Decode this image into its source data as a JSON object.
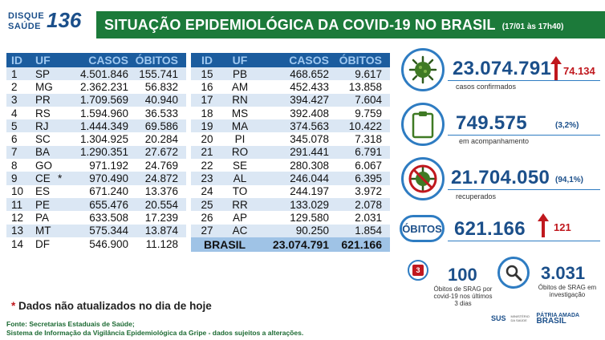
{
  "logo": {
    "line1": "DISQUE",
    "line2": "SAÚDE",
    "number": "136"
  },
  "header": {
    "title": "SITUAÇÃO EPIDEMIOLÓGICA DA COVID-19 NO BRASIL",
    "date": "(17/01 às 17h40)"
  },
  "table": {
    "headers": {
      "id": "ID",
      "uf": "UF",
      "casos": "CASOS",
      "obitos": "ÓBITOS"
    },
    "left": [
      {
        "id": "1",
        "uf": "SP",
        "casos": "4.501.846",
        "obitos": "155.741"
      },
      {
        "id": "2",
        "uf": "MG",
        "casos": "2.362.231",
        "obitos": "56.832"
      },
      {
        "id": "3",
        "uf": "PR",
        "casos": "1.709.569",
        "obitos": "40.940"
      },
      {
        "id": "4",
        "uf": "RS",
        "casos": "1.594.960",
        "obitos": "36.533"
      },
      {
        "id": "5",
        "uf": "RJ",
        "casos": "1.444.349",
        "obitos": "69.586"
      },
      {
        "id": "6",
        "uf": "SC",
        "casos": "1.304.925",
        "obitos": "20.284"
      },
      {
        "id": "7",
        "uf": "BA",
        "casos": "1.290.351",
        "obitos": "27.672"
      },
      {
        "id": "8",
        "uf": "GO",
        "casos": "971.192",
        "obitos": "24.769"
      },
      {
        "id": "9",
        "uf": "CE",
        "casos": "970.490",
        "obitos": "24.872",
        "star": "*"
      },
      {
        "id": "10",
        "uf": "ES",
        "casos": "671.240",
        "obitos": "13.376"
      },
      {
        "id": "11",
        "uf": "PE",
        "casos": "655.476",
        "obitos": "20.554"
      },
      {
        "id": "12",
        "uf": "PA",
        "casos": "633.508",
        "obitos": "17.239"
      },
      {
        "id": "13",
        "uf": "MT",
        "casos": "575.344",
        "obitos": "13.874"
      },
      {
        "id": "14",
        "uf": "DF",
        "casos": "546.900",
        "obitos": "11.128"
      }
    ],
    "right": [
      {
        "id": "15",
        "uf": "PB",
        "casos": "468.652",
        "obitos": "9.617"
      },
      {
        "id": "16",
        "uf": "AM",
        "casos": "452.433",
        "obitos": "13.858"
      },
      {
        "id": "17",
        "uf": "RN",
        "casos": "394.427",
        "obitos": "7.604"
      },
      {
        "id": "18",
        "uf": "MS",
        "casos": "392.408",
        "obitos": "9.759"
      },
      {
        "id": "19",
        "uf": "MA",
        "casos": "374.563",
        "obitos": "10.422"
      },
      {
        "id": "20",
        "uf": "PI",
        "casos": "345.078",
        "obitos": "7.318"
      },
      {
        "id": "21",
        "uf": "RO",
        "casos": "291.441",
        "obitos": "6.791"
      },
      {
        "id": "22",
        "uf": "SE",
        "casos": "280.308",
        "obitos": "6.067"
      },
      {
        "id": "23",
        "uf": "AL",
        "casos": "246.044",
        "obitos": "6.395"
      },
      {
        "id": "24",
        "uf": "TO",
        "casos": "244.197",
        "obitos": "3.972"
      },
      {
        "id": "25",
        "uf": "RR",
        "casos": "133.029",
        "obitos": "2.078"
      },
      {
        "id": "26",
        "uf": "AP",
        "casos": "129.580",
        "obitos": "2.031"
      },
      {
        "id": "27",
        "uf": "AC",
        "casos": "90.250",
        "obitos": "1.854"
      }
    ],
    "total": {
      "label": "BRASIL",
      "casos": "23.074.791",
      "obitos": "621.166"
    }
  },
  "stats": {
    "confirmed": {
      "value": "23.074.791",
      "delta": "74.134",
      "label": "casos confirmados",
      "icon": "virus-icon"
    },
    "monitoring": {
      "value": "749.575",
      "pct": "(3,2%)",
      "label": "em acompanhamento",
      "icon": "clipboard-icon"
    },
    "recovered": {
      "value": "21.704.050",
      "pct": "(94,1%)",
      "label": "recuperados",
      "icon": "crossed-virus-icon"
    },
    "deaths": {
      "badge": "ÓBITOS",
      "value": "621.166",
      "delta": "121"
    },
    "srag_recent": {
      "value": "100",
      "label": "Óbitos de SRAG por covid-19 nos últimos 3 dias",
      "icon_text": "3"
    },
    "srag_investigation": {
      "value": "3.031",
      "label": "Óbitos de SRAG em investigação"
    }
  },
  "footer": {
    "note_star": "*",
    "note": "Dados não atualizados no dia de hoje",
    "source1": "Fonte: Secretarias Estaduais de Saúde;",
    "source2": "Sistema de Informação da Vigilância Epidemiológica da Gripe - dados sujeitos a alterações.",
    "sus": "SUS",
    "ministry": "MINISTÉRIO DA SAÚDE",
    "patria": "PÁTRIA AMADA",
    "brasil": "BRASIL"
  },
  "colors": {
    "header_green": "#1c7a3a",
    "table_blue": "#1b5c9e",
    "accent_red": "#c0181e",
    "text_blue": "#1b4f8a"
  }
}
